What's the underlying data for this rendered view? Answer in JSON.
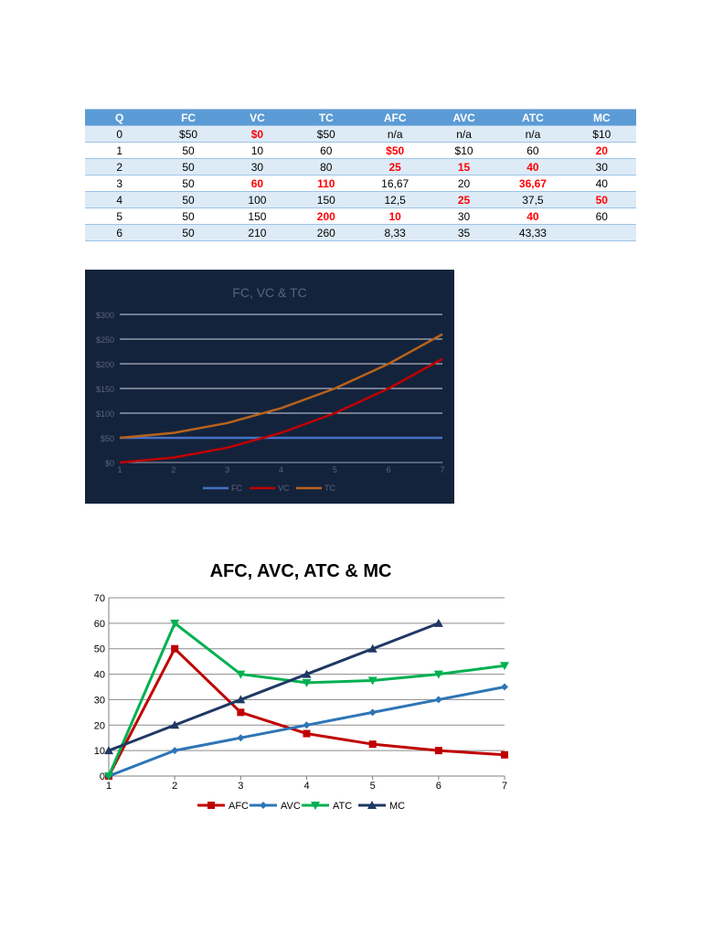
{
  "table": {
    "headers": [
      "Q",
      "FC",
      "VC",
      "TC",
      "AFC",
      "AVC",
      "ATC",
      "MC"
    ],
    "rows": [
      [
        "0",
        "$50",
        "$0",
        "$50",
        "n/a",
        "n/a",
        "n/a",
        "$10"
      ],
      [
        "1",
        "50",
        "10",
        "60",
        "$50",
        "$10",
        "60",
        "20"
      ],
      [
        "2",
        "50",
        "30",
        "80",
        "25",
        "15",
        "40",
        "30"
      ],
      [
        "3",
        "50",
        "60",
        "110",
        "16,67",
        "20",
        "36,67",
        "40"
      ],
      [
        "4",
        "50",
        "100",
        "150",
        "12,5",
        "25",
        "37,5",
        "50"
      ],
      [
        "5",
        "50",
        "150",
        "200",
        "10",
        "30",
        "40",
        "60"
      ],
      [
        "6",
        "50",
        "210",
        "260",
        "8,33",
        "35",
        "43,33",
        ""
      ]
    ],
    "highlighted": [
      [
        0,
        2
      ],
      [
        1,
        4
      ],
      [
        1,
        7
      ],
      [
        2,
        4
      ],
      [
        2,
        5
      ],
      [
        2,
        6
      ],
      [
        3,
        2
      ],
      [
        3,
        3
      ],
      [
        3,
        6
      ],
      [
        4,
        5
      ],
      [
        4,
        7
      ],
      [
        5,
        3
      ],
      [
        5,
        4
      ],
      [
        5,
        6
      ]
    ],
    "highlight_color": "#ff0000"
  },
  "chart_data": [
    {
      "type": "line",
      "title": "FC, VC & TC",
      "background": "#14233c",
      "x": [
        1,
        2,
        3,
        4,
        5,
        6,
        7
      ],
      "series": [
        {
          "name": "FC",
          "color": "#4472c4",
          "values": [
            50,
            50,
            50,
            50,
            50,
            50,
            50
          ]
        },
        {
          "name": "VC",
          "color": "#c00000",
          "values": [
            0,
            10,
            30,
            60,
            100,
            150,
            210
          ]
        },
        {
          "name": "TC",
          "color": "#b8621b",
          "values": [
            50,
            60,
            80,
            110,
            150,
            200,
            260
          ]
        }
      ],
      "ylim": [
        0,
        300
      ],
      "yticks": [
        "$0",
        "$50",
        "$100",
        "$150",
        "$200",
        "$250",
        "$300"
      ],
      "xticks": [
        "1",
        "2",
        "3",
        "4",
        "5",
        "6",
        "7"
      ],
      "grid": true,
      "legend": "bottom"
    },
    {
      "type": "line",
      "title": "AFC, AVC, ATC & MC",
      "x": [
        1,
        2,
        3,
        4,
        5,
        6,
        7
      ],
      "series": [
        {
          "name": "AFC",
          "color": "#c00000",
          "marker": "square",
          "values": [
            0,
            50,
            25,
            16.67,
            12.5,
            10,
            8.33
          ]
        },
        {
          "name": "AVC",
          "color": "#2e75b6",
          "marker": "diamond",
          "values": [
            0,
            10,
            15,
            20,
            25,
            30,
            35
          ]
        },
        {
          "name": "ATC",
          "color": "#00b050",
          "marker": "triangle-down",
          "values": [
            0,
            60,
            40,
            36.67,
            37.5,
            40,
            43.33
          ]
        },
        {
          "name": "MC",
          "color": "#1f3864",
          "marker": "triangle-up",
          "values": [
            10,
            20,
            30,
            40,
            50,
            60,
            null
          ]
        }
      ],
      "ylim": [
        0,
        70
      ],
      "yticks": [
        "0",
        "10",
        "20",
        "30",
        "40",
        "50",
        "60",
        "70"
      ],
      "xticks": [
        "1",
        "2",
        "3",
        "4",
        "5",
        "6",
        "7"
      ],
      "grid": true,
      "legend": "bottom"
    }
  ]
}
